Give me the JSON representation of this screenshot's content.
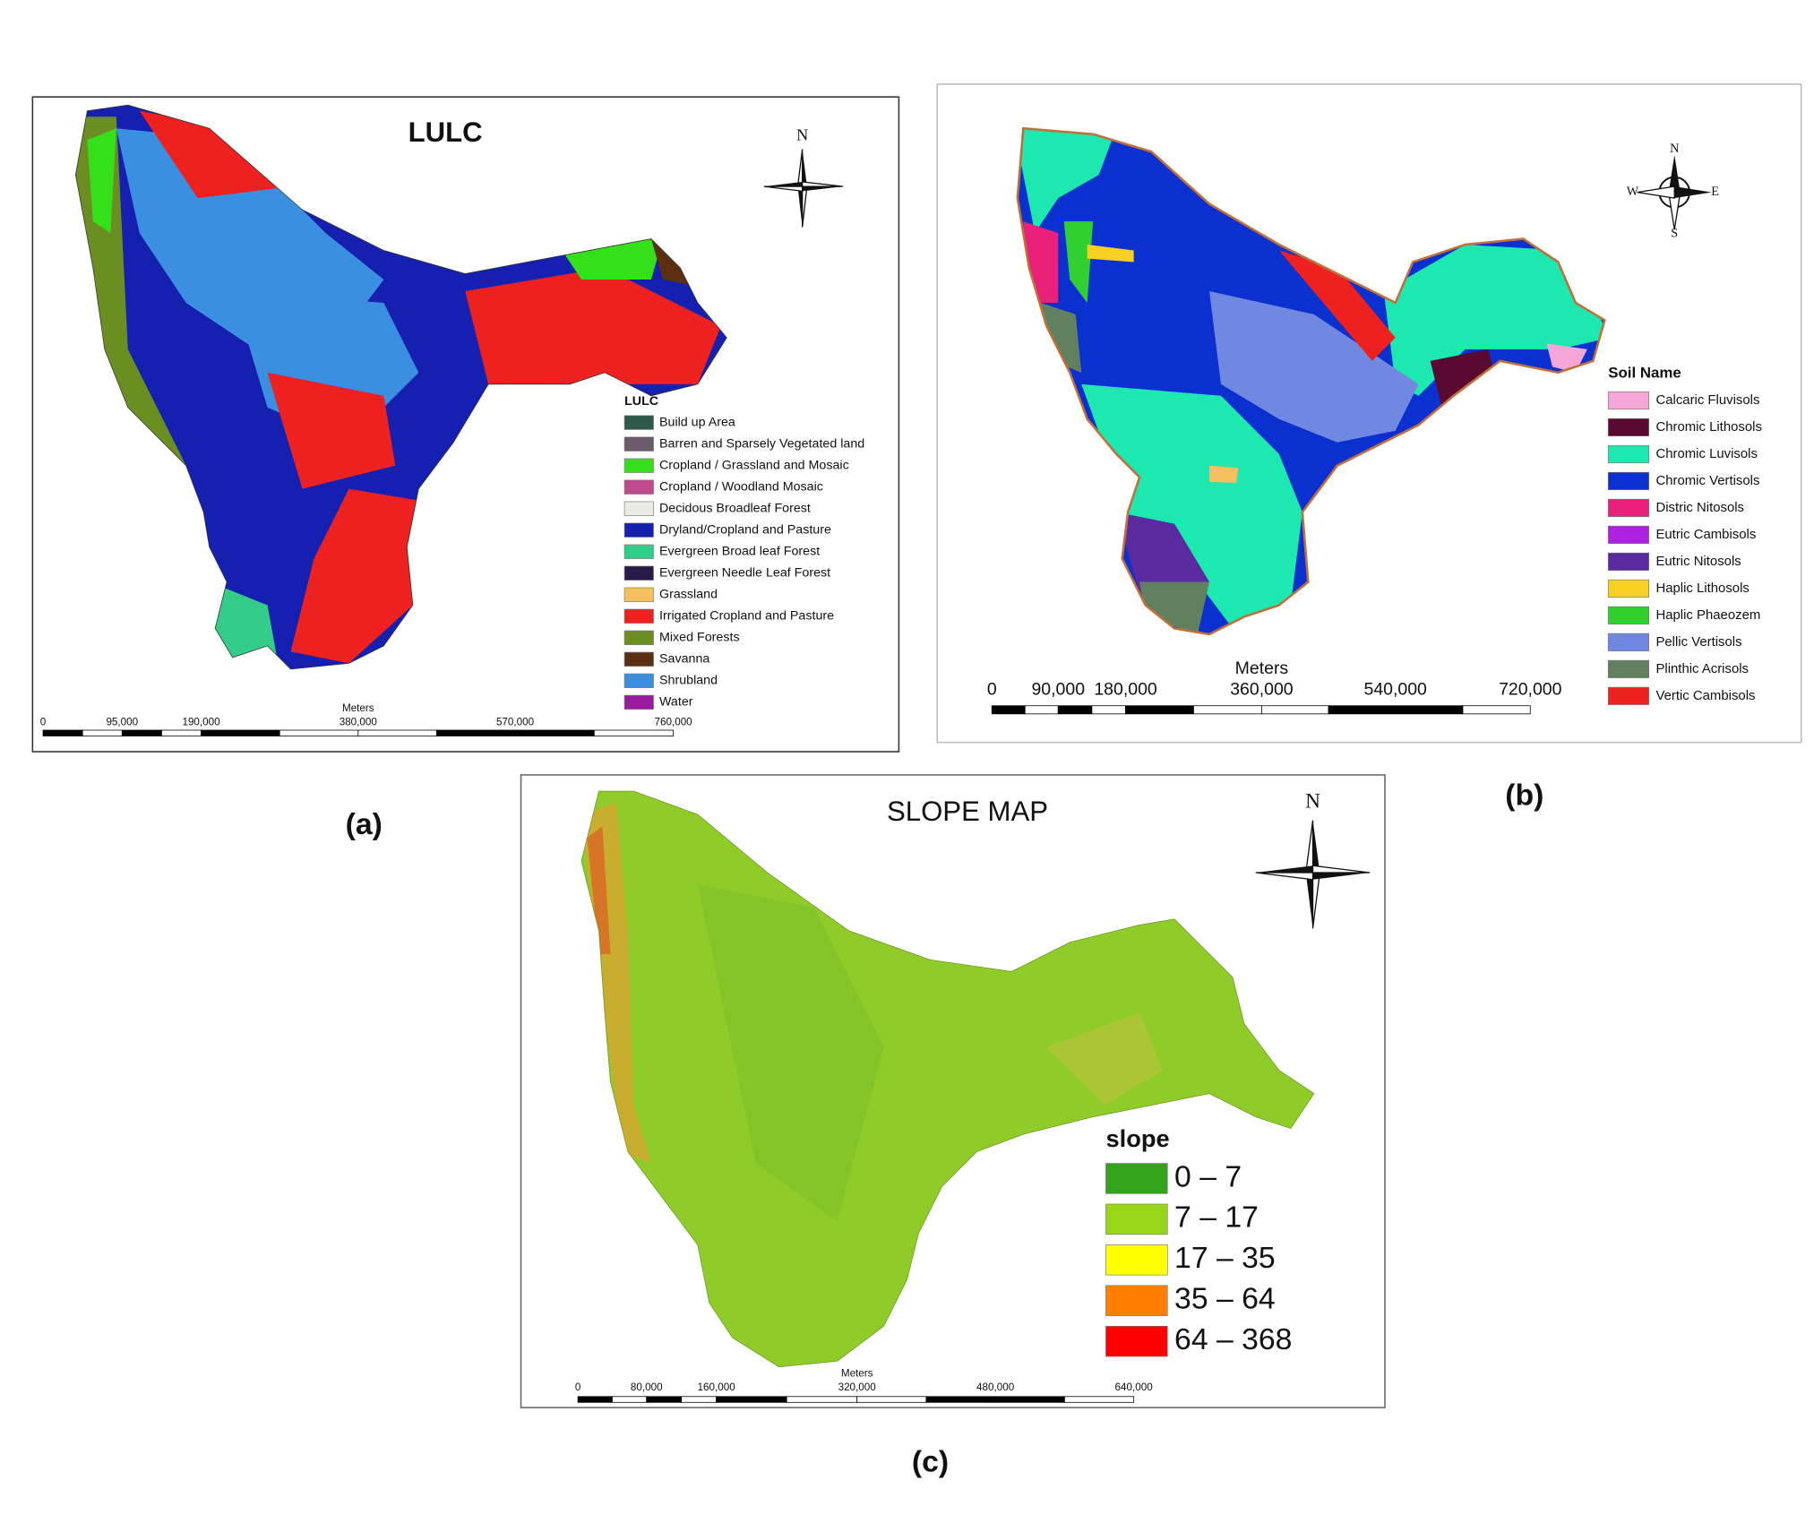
{
  "panels": [
    {
      "title": "LULC",
      "caption": "(a)",
      "north": {
        "N": "N"
      },
      "legend": {
        "title": "LULC",
        "items": [
          {
            "label": "Build up Area",
            "color": "#2d5a4a"
          },
          {
            "label": "Barren and Sparsely Vegetated land",
            "color": "#6b5a6b"
          },
          {
            "label": "Cropland / Grassland and Mosaic",
            "color": "#33e01a"
          },
          {
            "label": "Cropland / Woodland Mosaic",
            "color": "#c04a90"
          },
          {
            "label": "Decidous Broadleaf Forest",
            "color": "#ececE4"
          },
          {
            "label": "Dryland/Cropland and Pasture",
            "color": "#1520b0"
          },
          {
            "label": "Evergreen Broad leaf Forest",
            "color": "#33cc88"
          },
          {
            "label": "Evergreen Needle Leaf Forest",
            "color": "#2a1a4a"
          },
          {
            "label": "Grassland",
            "color": "#f5c060"
          },
          {
            "label": "Irrigated Cropland and Pasture",
            "color": "#ee2020"
          },
          {
            "label": "Mixed Forests",
            "color": "#6b8e23"
          },
          {
            "label": "Savanna",
            "color": "#5a3010"
          },
          {
            "label": "Shrubland",
            "color": "#3a8fe0"
          },
          {
            "label": "Water",
            "color": "#9a1aa0"
          }
        ]
      },
      "scale": {
        "unit": "Meters",
        "labels": [
          "0",
          "95,000",
          "190,000",
          "380,000",
          "570,000",
          "760,000"
        ]
      }
    },
    {
      "caption": "(b)",
      "north": {
        "N": "N",
        "E": "E",
        "S": "S",
        "W": "W"
      },
      "legend": {
        "title": "Soil Name",
        "items": [
          {
            "label": "Calcaric Fluvisols",
            "color": "#f4a6d8"
          },
          {
            "label": "Chromic Lithosols",
            "color": "#5a0a30"
          },
          {
            "label": "Chromic Luvisols",
            "color": "#1de8b0"
          },
          {
            "label": "Chromic Vertisols",
            "color": "#0a30d0"
          },
          {
            "label": "Distric Nitosols",
            "color": "#e8207a"
          },
          {
            "label": "Eutric Cambisols",
            "color": "#b020e0"
          },
          {
            "label": "Eutric Nitosols",
            "color": "#5a2aa0"
          },
          {
            "label": "Haplic Lithosols",
            "color": "#f8d020"
          },
          {
            "label": "Haplic Phaeozem",
            "color": "#30d030"
          },
          {
            "label": "Pellic Vertisols",
            "color": "#7088e0"
          },
          {
            "label": "Plinthic Acrisols",
            "color": "#608060"
          },
          {
            "label": "Vertic Cambisols",
            "color": "#ee2020"
          }
        ]
      },
      "scale": {
        "unit": "Meters",
        "labels": [
          "0",
          "90,000",
          "180,000",
          "360,000",
          "540,000",
          "720,000"
        ]
      }
    },
    {
      "title": "SLOPE MAP",
      "caption": "(c)",
      "north": {
        "N": "N"
      },
      "legend": {
        "title": "slope",
        "items": [
          {
            "label": "0 – 7",
            "color": "#33a31a"
          },
          {
            "label": "7 – 17",
            "color": "#99d61a"
          },
          {
            "label": "17 – 35",
            "color": "#ffff00"
          },
          {
            "label": "35 – 64",
            "color": "#ff8000"
          },
          {
            "label": "64 – 368",
            "color": "#ff0000"
          }
        ]
      },
      "scale": {
        "unit": "Meters",
        "labels": [
          "0",
          "80,000",
          "160,000",
          "320,000",
          "480,000",
          "640,000"
        ]
      }
    }
  ]
}
